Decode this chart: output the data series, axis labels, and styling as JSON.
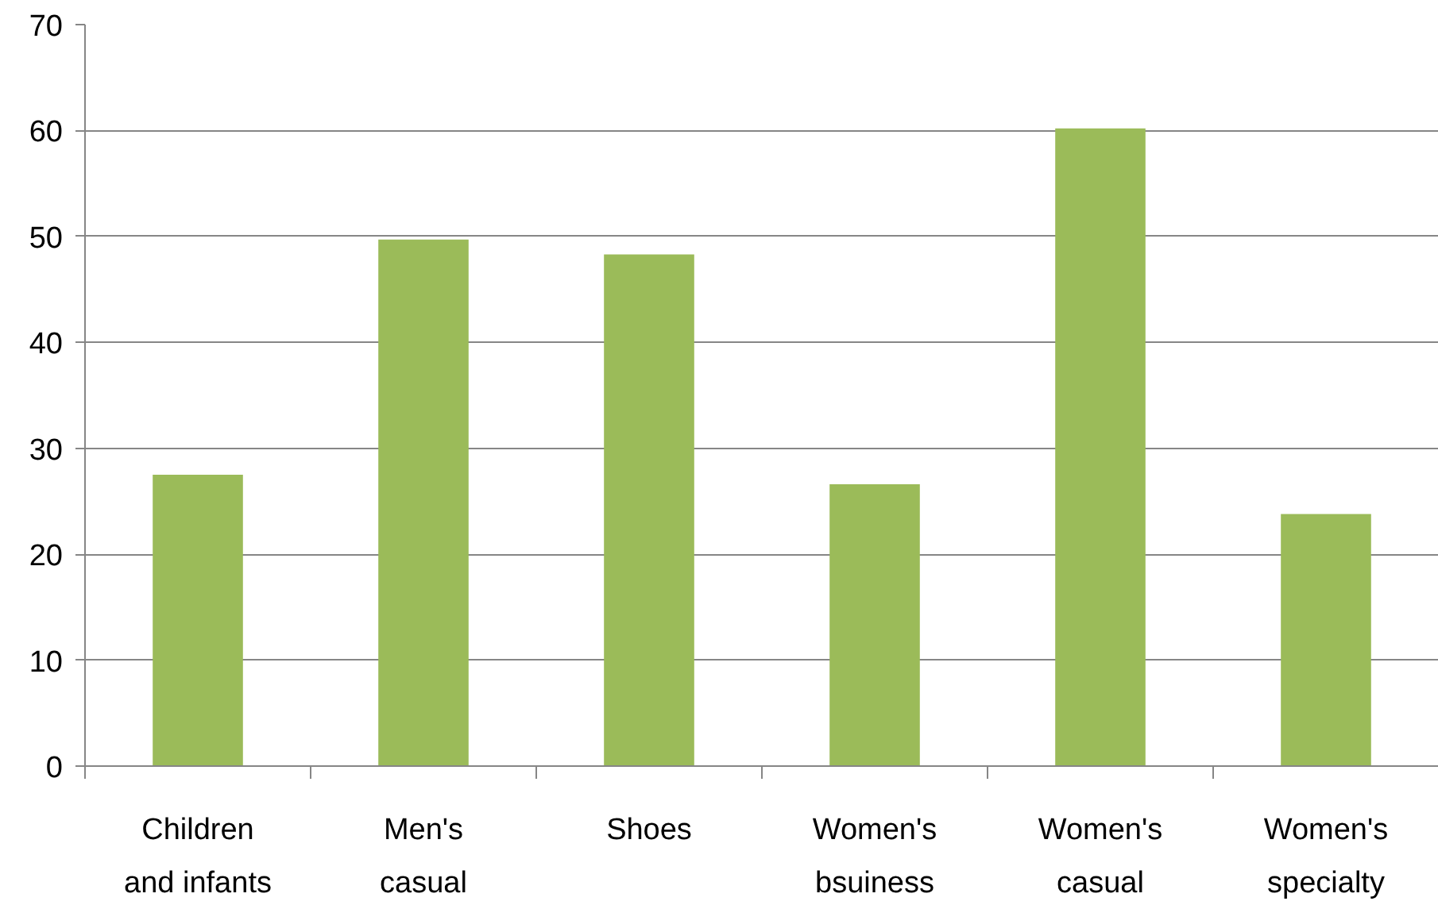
{
  "chart_data": {
    "type": "bar",
    "categories": [
      "Children and infants",
      "Men's casual",
      "Shoes",
      "Women's bsuiness",
      "Women's casual",
      "Women's specialty"
    ],
    "values": [
      27.5,
      49.7,
      48.3,
      26.6,
      60.2,
      23.8
    ],
    "color": "#9bbb59",
    "ylim": [
      0,
      70
    ],
    "yticks": [
      0,
      10,
      20,
      30,
      40,
      50,
      60,
      70
    ],
    "grid": "y"
  }
}
